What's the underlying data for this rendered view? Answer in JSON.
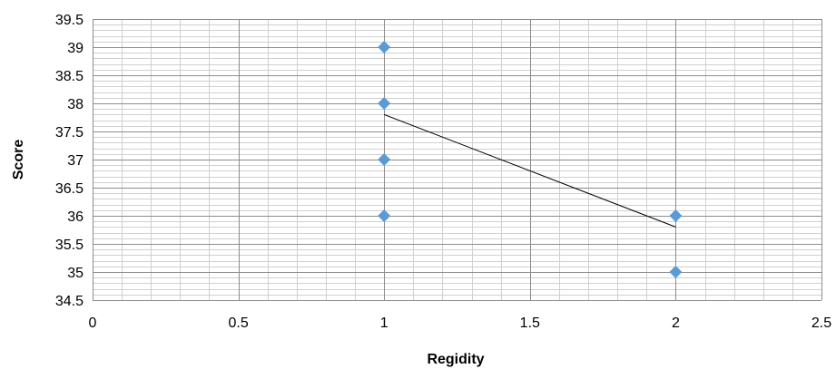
{
  "chart_data": {
    "type": "scatter",
    "xlabel": "Regidity",
    "ylabel": "Score",
    "xlim": [
      0,
      2.5
    ],
    "ylim": [
      34.5,
      39.5
    ],
    "x_ticks": [
      "0",
      "0.5",
      "1",
      "1.5",
      "2",
      "2.5"
    ],
    "y_ticks": [
      "34.5",
      "35",
      "35.5",
      "36",
      "36.5",
      "37",
      "37.5",
      "38",
      "38.5",
      "39",
      "39.5"
    ],
    "x_tick_values": [
      0,
      0.5,
      1,
      1.5,
      2,
      2.5
    ],
    "y_tick_values": [
      34.5,
      35,
      35.5,
      36,
      36.5,
      37,
      37.5,
      38,
      38.5,
      39,
      39.5
    ],
    "grid": true,
    "series": [
      {
        "marker": "diamond",
        "color": "#5b9bd5",
        "points": [
          {
            "x": 1,
            "y": 39
          },
          {
            "x": 1,
            "y": 38
          },
          {
            "x": 1,
            "y": 37
          },
          {
            "x": 1,
            "y": 36
          },
          {
            "x": 2,
            "y": 36
          },
          {
            "x": 2,
            "y": 35
          }
        ]
      }
    ],
    "trendline": {
      "color": "#000000",
      "points": [
        {
          "x": 1,
          "y": 37.8
        },
        {
          "x": 2,
          "y": 35.8
        }
      ]
    },
    "colors": {
      "minor_grid": "#d0d0d0",
      "major_grid": "#8c8c8c"
    }
  }
}
